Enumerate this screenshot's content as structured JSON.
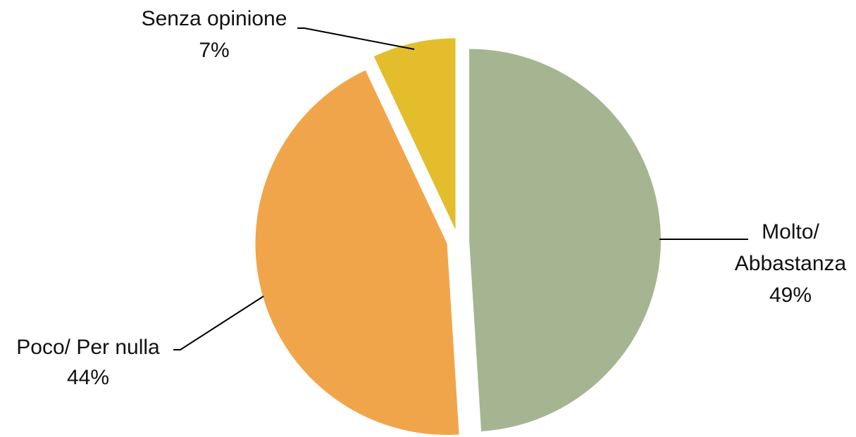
{
  "chart_data": {
    "type": "pie",
    "title": "",
    "slices": [
      {
        "label_lines": [
          "Molto/",
          "Abbastanza"
        ],
        "value": 49,
        "value_label": "49%",
        "color": "#a6b591"
      },
      {
        "label_lines": [
          "Poco/ Per nulla"
        ],
        "value": 44,
        "value_label": "44%",
        "color": "#f1a54a"
      },
      {
        "label_lines": [
          "Senza opinione"
        ],
        "value": 7,
        "value_label": "7%",
        "color": "#e3bd2c"
      }
    ],
    "exploded": true,
    "legend": "none",
    "data_labels": "outside with leader lines"
  }
}
